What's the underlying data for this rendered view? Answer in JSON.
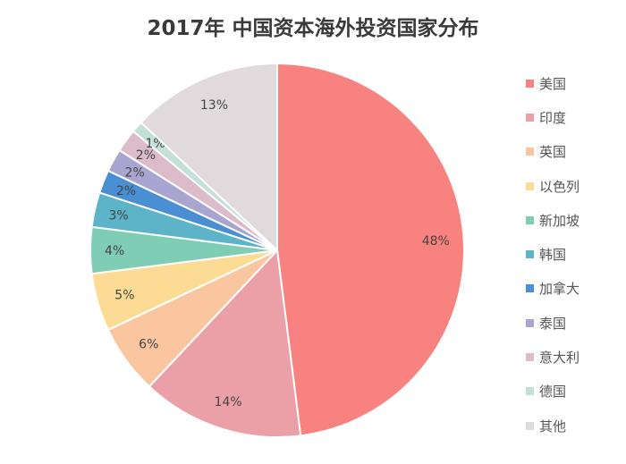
{
  "chart_data": {
    "type": "pie",
    "title": "2017年 中国资本海外投资国家分布",
    "start_angle": "12 o'clock, clockwise",
    "legend_position": "right",
    "slices": [
      {
        "name": "美国",
        "value": 48,
        "label": "48%",
        "color": "#f8827f"
      },
      {
        "name": "印度",
        "value": 14,
        "label": "14%",
        "color": "#eba0a8"
      },
      {
        "name": "英国",
        "value": 6,
        "label": "6%",
        "color": "#f9c6a0"
      },
      {
        "name": "以色列",
        "value": 5,
        "label": "5%",
        "color": "#fcdc95"
      },
      {
        "name": "新加坡",
        "value": 4,
        "label": "4%",
        "color": "#7fcdb5"
      },
      {
        "name": "韩国",
        "value": 3,
        "label": "3%",
        "color": "#5db4c9"
      },
      {
        "name": "加拿大",
        "value": 2,
        "label": "2%",
        "color": "#4a8fd4"
      },
      {
        "name": "泰国",
        "value": 2,
        "label": "2%",
        "color": "#a8a6d0"
      },
      {
        "name": "意大利",
        "value": 2,
        "label": "2%",
        "color": "#dcbccb"
      },
      {
        "name": "德国",
        "value": 1,
        "label": "1%",
        "color": "#c2e0d6"
      },
      {
        "name": "其他",
        "value": 13,
        "label": "13%",
        "color": "#e0dadd"
      }
    ]
  }
}
